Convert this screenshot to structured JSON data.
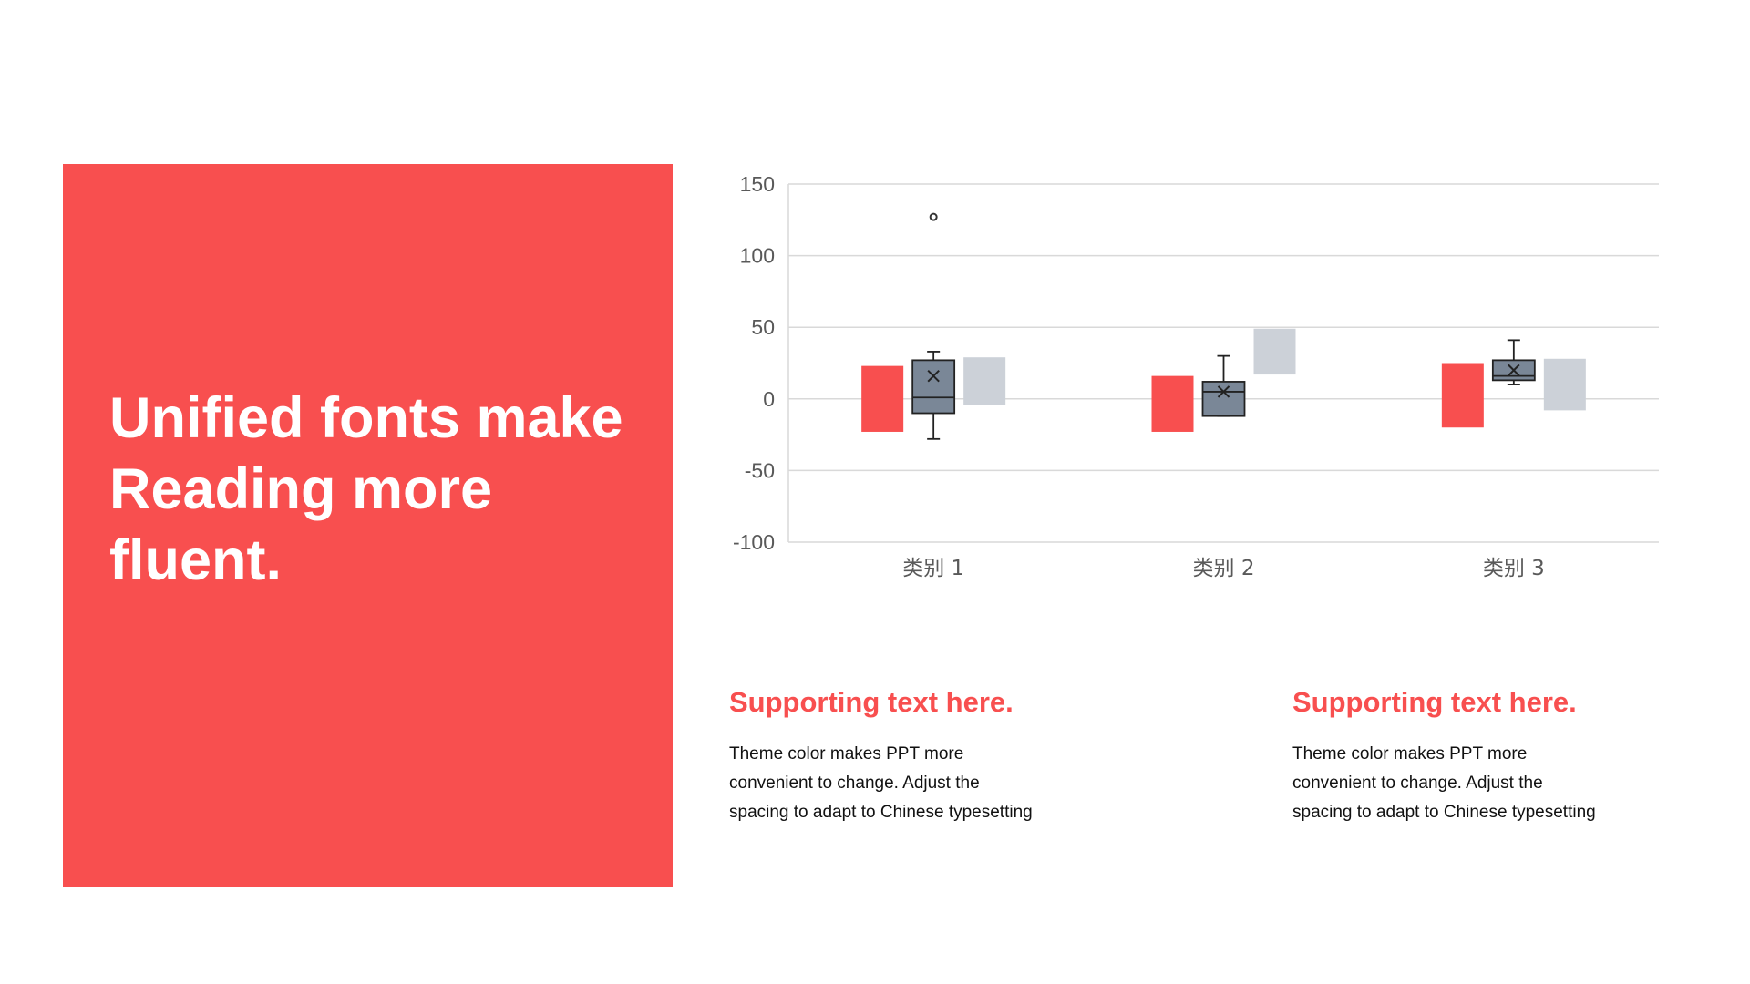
{
  "hero": {
    "title_lines": [
      "Unified fonts make",
      "Reading more",
      "fluent."
    ]
  },
  "columns": [
    {
      "title": "Supporting text here.",
      "text": "Theme  color makes PPT more convenient  to change.  Adjust the spacing  to adapt to Chinese typesetting"
    },
    {
      "title": "Supporting text here.",
      "text": "Theme  color makes PPT more convenient  to change.  Adjust the spacing  to adapt to Chinese typesetting"
    }
  ],
  "colors": {
    "accent": "#f84f4f",
    "box": "#7a8797",
    "light": "#ccd1d8",
    "grid": "#d9d9d9",
    "axis_text": "#595959"
  },
  "chart_data": {
    "type": "box",
    "title": "",
    "xlabel": "",
    "ylabel": "",
    "ylim": [
      -100,
      150
    ],
    "yticks": [
      150,
      100,
      50,
      0,
      -50,
      -100
    ],
    "grid": true,
    "legend": "none",
    "categories": [
      "类别 1",
      "类别 2",
      "类别 3"
    ],
    "series": [
      {
        "type": "range",
        "color": "#f84f4f",
        "ranges": [
          [
            -23,
            23
          ],
          [
            -23,
            16
          ],
          [
            -20,
            25
          ]
        ]
      },
      {
        "type": "box",
        "color": "#7a8797",
        "boxes": [
          {
            "min": -28,
            "q1": -10,
            "median": 1,
            "q3": 27,
            "max": 33,
            "mean": 16,
            "outliers": [
              127
            ]
          },
          {
            "min": -12,
            "q1": -12,
            "median": 5,
            "q3": 12,
            "max": 30,
            "mean": 5,
            "outliers": []
          },
          {
            "min": 10,
            "q1": 13,
            "median": 16,
            "q3": 27,
            "max": 41,
            "mean": 20,
            "outliers": []
          }
        ]
      },
      {
        "type": "range",
        "color": "#ccd1d8",
        "ranges": [
          [
            -4,
            29
          ],
          [
            17,
            49
          ],
          [
            -8,
            28
          ]
        ]
      }
    ]
  }
}
